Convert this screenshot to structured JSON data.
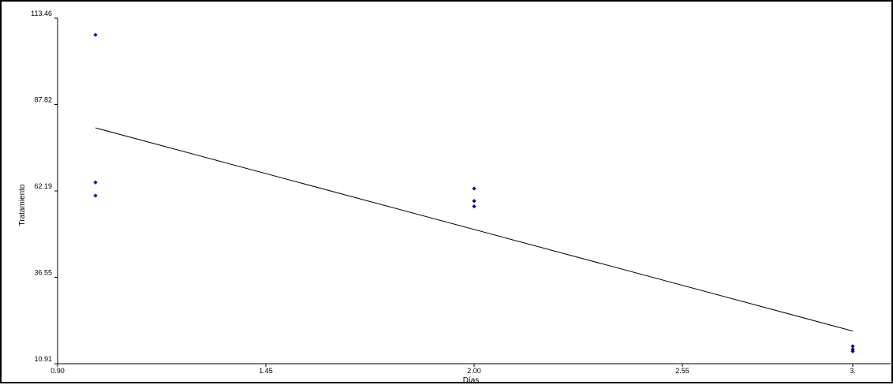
{
  "chart_data": {
    "type": "scatter",
    "xlabel": "Días",
    "ylabel": "Tratamiento",
    "xlim": [
      0.9,
      3.1
    ],
    "ylim": [
      10.91,
      113.46
    ],
    "x_ticks": [
      "0.90",
      "1.45",
      "2.00",
      "2.55",
      "3."
    ],
    "y_ticks": [
      "10.91",
      "36.55",
      "62.19",
      "87.82",
      "113.46"
    ],
    "grid": false,
    "legend": "none",
    "points_color": "#00008b",
    "line_color": "#000000",
    "points": [
      {
        "x": 1.0,
        "y": 108.5
      },
      {
        "x": 1.0,
        "y": 64.7
      },
      {
        "x": 1.0,
        "y": 60.8
      },
      {
        "x": 2.0,
        "y": 62.9
      },
      {
        "x": 2.0,
        "y": 59.2
      },
      {
        "x": 2.0,
        "y": 57.6
      },
      {
        "x": 3.0,
        "y": 16.1
      },
      {
        "x": 3.0,
        "y": 15.2
      },
      {
        "x": 3.0,
        "y": 14.6
      }
    ],
    "fit_line": [
      {
        "x": 1.0,
        "y": 80.9
      },
      {
        "x": 3.0,
        "y": 20.6
      }
    ]
  }
}
